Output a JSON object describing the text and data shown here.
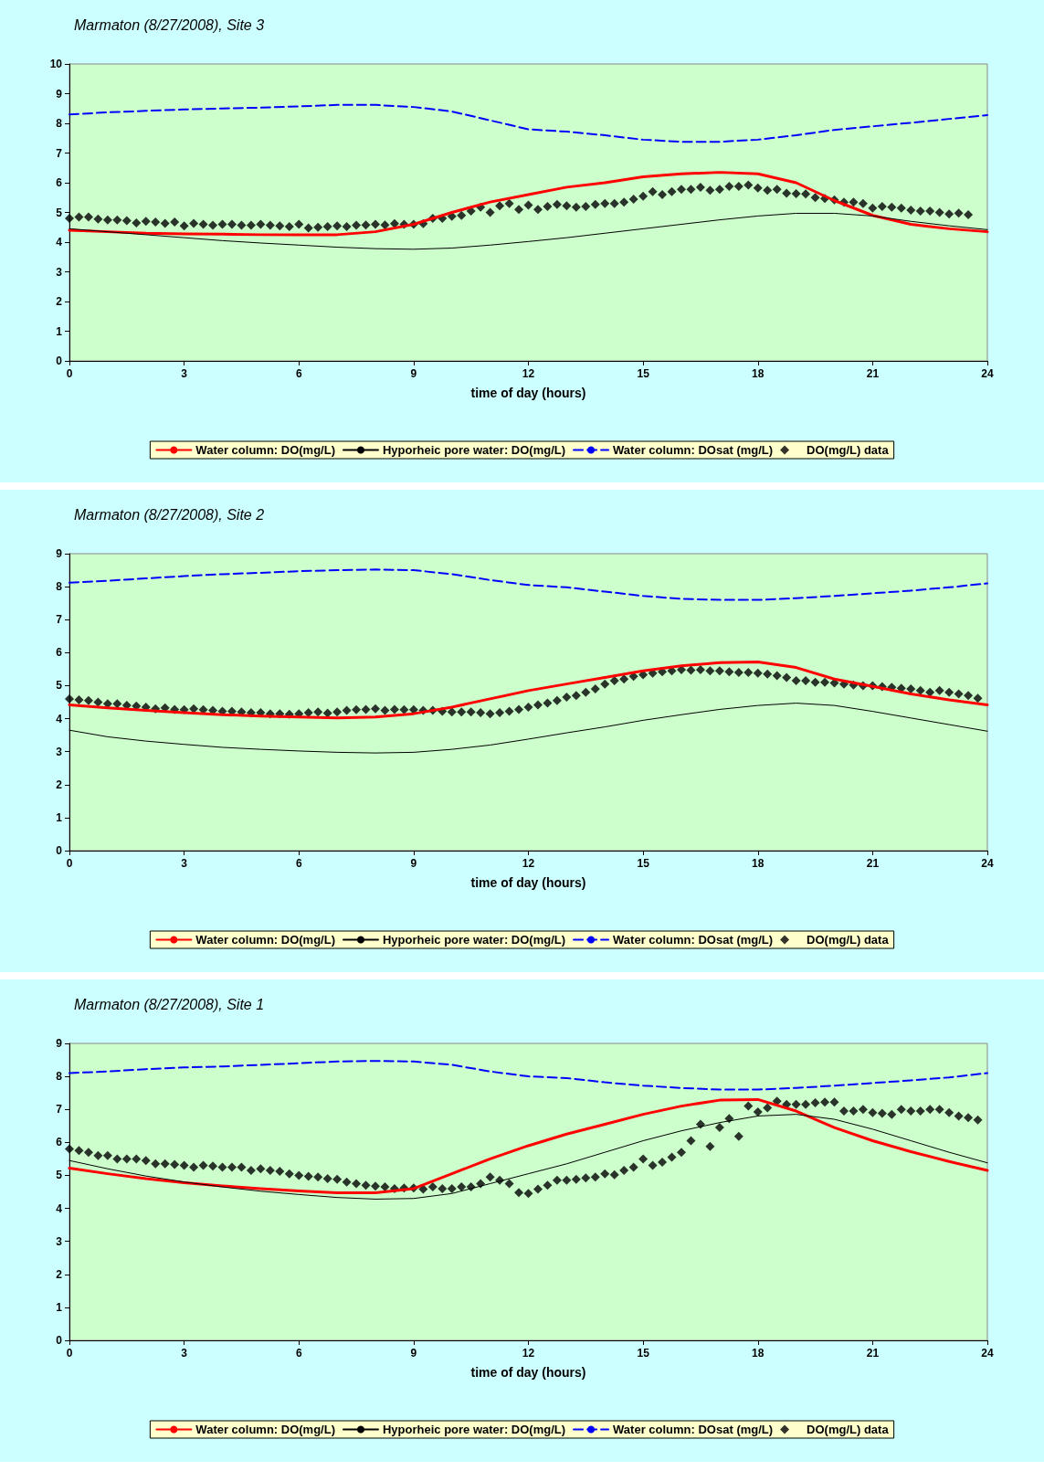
{
  "chart_data": [
    {
      "type": "line",
      "title": "Marmaton (8/27/2008), Site 3",
      "xlabel": "time of day (hours)",
      "xlim": [
        0,
        24
      ],
      "xticks": [
        0,
        3,
        6,
        9,
        12,
        15,
        18,
        21,
        24
      ],
      "ylim": [
        0,
        10
      ],
      "yticks": [
        0,
        1,
        2,
        3,
        4,
        5,
        6,
        7,
        8,
        9,
        10
      ],
      "grid": false,
      "legend": "bottom",
      "series": [
        {
          "name": "Water column: DO(mg/L)",
          "color": "#ff0000",
          "line_style": "solid",
          "marker": "none",
          "x": [
            0,
            1,
            2,
            3,
            4,
            5,
            6,
            7,
            8,
            9,
            10,
            11,
            12,
            13,
            14,
            15,
            16,
            17,
            18,
            19,
            20,
            21,
            22,
            23,
            24
          ],
          "values": [
            4.4,
            4.35,
            4.3,
            4.28,
            4.27,
            4.25,
            4.25,
            4.25,
            4.35,
            4.6,
            5.0,
            5.35,
            5.6,
            5.85,
            6.0,
            6.2,
            6.3,
            6.35,
            6.3,
            6.0,
            5.4,
            4.9,
            4.6,
            4.45,
            4.35
          ]
        },
        {
          "name": "Hyporheic pore water: DO(mg/L)",
          "color": "#000000",
          "line_style": "solid",
          "marker": "none",
          "x": [
            0,
            1,
            2,
            3,
            4,
            5,
            6,
            7,
            8,
            9,
            10,
            11,
            12,
            13,
            14,
            15,
            16,
            17,
            18,
            19,
            20,
            21,
            22,
            23,
            24
          ],
          "values": [
            4.45,
            4.35,
            4.25,
            4.15,
            4.05,
            3.97,
            3.9,
            3.83,
            3.78,
            3.76,
            3.8,
            3.9,
            4.02,
            4.15,
            4.3,
            4.45,
            4.6,
            4.75,
            4.88,
            4.97,
            4.97,
            4.88,
            4.7,
            4.55,
            4.42
          ]
        },
        {
          "name": "Water column: DOsat (mg/L)",
          "color": "#0000ff",
          "line_style": "dashed",
          "marker": "none",
          "x": [
            0,
            1,
            2,
            3,
            4,
            5,
            6,
            7,
            8,
            9,
            10,
            11,
            12,
            13,
            14,
            15,
            16,
            17,
            18,
            19,
            20,
            21,
            22,
            23,
            24
          ],
          "values": [
            8.3,
            8.37,
            8.42,
            8.47,
            8.5,
            8.53,
            8.57,
            8.62,
            8.62,
            8.55,
            8.4,
            8.1,
            7.8,
            7.72,
            7.6,
            7.45,
            7.38,
            7.38,
            7.45,
            7.6,
            7.78,
            7.9,
            8.02,
            8.15,
            8.28
          ]
        },
        {
          "name": "DO(mg/L) data",
          "type": "scatter",
          "color": "#000000",
          "marker": "diamond",
          "x": [
            0,
            0.25,
            0.5,
            0.75,
            1,
            1.25,
            1.5,
            1.75,
            2,
            2.25,
            2.5,
            2.75,
            3,
            3.25,
            3.5,
            3.75,
            4,
            4.25,
            4.5,
            4.75,
            5,
            5.25,
            5.5,
            5.75,
            6,
            6.25,
            6.5,
            6.75,
            7,
            7.25,
            7.5,
            7.75,
            8,
            8.25,
            8.5,
            8.75,
            9,
            9.25,
            9.5,
            9.75,
            10,
            10.25,
            10.5,
            10.75,
            11,
            11.25,
            11.5,
            11.75,
            12,
            12.25,
            12.5,
            12.75,
            13,
            13.25,
            13.5,
            13.75,
            14,
            14.25,
            14.5,
            14.75,
            15,
            15.25,
            15.5,
            15.75,
            16,
            16.25,
            16.5,
            16.75,
            17,
            17.25,
            17.5,
            17.75,
            18,
            18.25,
            18.5,
            18.75,
            19,
            19.25,
            19.5,
            19.75,
            20,
            20.25,
            20.5,
            20.75,
            21,
            21.25,
            21.5,
            21.75,
            22,
            22.25,
            22.5,
            22.75,
            23,
            23.25,
            23.5
          ],
          "values": [
            4.8,
            4.85,
            4.85,
            4.78,
            4.75,
            4.75,
            4.72,
            4.65,
            4.7,
            4.68,
            4.63,
            4.68,
            4.55,
            4.63,
            4.6,
            4.57,
            4.6,
            4.6,
            4.57,
            4.57,
            4.6,
            4.57,
            4.55,
            4.52,
            4.6,
            4.48,
            4.5,
            4.52,
            4.55,
            4.52,
            4.57,
            4.58,
            4.6,
            4.58,
            4.62,
            4.6,
            4.6,
            4.62,
            4.8,
            4.8,
            4.87,
            4.9,
            5.05,
            5.18,
            5.0,
            5.22,
            5.3,
            5.1,
            5.25,
            5.1,
            5.2,
            5.27,
            5.22,
            5.18,
            5.2,
            5.27,
            5.3,
            5.3,
            5.35,
            5.45,
            5.55,
            5.7,
            5.6,
            5.7,
            5.78,
            5.78,
            5.85,
            5.75,
            5.78,
            5.88,
            5.88,
            5.92,
            5.82,
            5.75,
            5.78,
            5.65,
            5.63,
            5.62,
            5.5,
            5.47,
            5.42,
            5.35,
            5.35,
            5.3,
            5.15,
            5.2,
            5.18,
            5.15,
            5.08,
            5.05,
            5.05,
            5.0,
            4.95,
            4.98,
            4.92
          ]
        }
      ]
    },
    {
      "type": "line",
      "title": "Marmaton (8/27/2008), Site 2",
      "xlabel": "time of day (hours)",
      "xlim": [
        0,
        24
      ],
      "xticks": [
        0,
        3,
        6,
        9,
        12,
        15,
        18,
        21,
        24
      ],
      "ylim": [
        0,
        9
      ],
      "yticks": [
        0,
        1,
        2,
        3,
        4,
        5,
        6,
        7,
        8,
        9
      ],
      "grid": false,
      "legend": "bottom",
      "series": [
        {
          "name": "Water column: DO(mg/L)",
          "color": "#ff0000",
          "line_style": "solid",
          "marker": "none",
          "x": [
            0,
            1,
            2,
            3,
            4,
            5,
            6,
            7,
            8,
            9,
            10,
            11,
            12,
            13,
            14,
            15,
            16,
            17,
            18,
            19,
            20,
            21,
            22,
            23,
            24
          ],
          "values": [
            4.42,
            4.33,
            4.25,
            4.18,
            4.12,
            4.08,
            4.05,
            4.02,
            4.05,
            4.15,
            4.35,
            4.6,
            4.85,
            5.05,
            5.25,
            5.45,
            5.6,
            5.7,
            5.72,
            5.55,
            5.2,
            4.98,
            4.75,
            4.57,
            4.42
          ]
        },
        {
          "name": "Hyporheic pore water: DO(mg/L)",
          "color": "#000000",
          "line_style": "solid",
          "marker": "none",
          "x": [
            0,
            1,
            2,
            3,
            4,
            5,
            6,
            7,
            8,
            9,
            10,
            11,
            12,
            13,
            14,
            15,
            16,
            17,
            18,
            19,
            20,
            21,
            22,
            23,
            24
          ],
          "values": [
            3.65,
            3.45,
            3.32,
            3.22,
            3.13,
            3.07,
            3.02,
            2.98,
            2.96,
            2.98,
            3.07,
            3.2,
            3.38,
            3.57,
            3.75,
            3.95,
            4.12,
            4.28,
            4.4,
            4.47,
            4.4,
            4.22,
            4.02,
            3.82,
            3.62
          ]
        },
        {
          "name": "Water column: DOsat (mg/L)",
          "color": "#0000ff",
          "line_style": "dashed",
          "marker": "none",
          "x": [
            0,
            1,
            2,
            3,
            4,
            5,
            6,
            7,
            8,
            9,
            10,
            11,
            12,
            13,
            14,
            15,
            16,
            17,
            18,
            19,
            20,
            21,
            22,
            23,
            24
          ],
          "values": [
            8.12,
            8.18,
            8.25,
            8.32,
            8.38,
            8.42,
            8.47,
            8.5,
            8.52,
            8.5,
            8.38,
            8.2,
            8.05,
            7.98,
            7.85,
            7.72,
            7.63,
            7.6,
            7.6,
            7.65,
            7.72,
            7.8,
            7.88,
            7.98,
            8.1
          ]
        },
        {
          "name": "DO(mg/L) data",
          "type": "scatter",
          "color": "#000000",
          "marker": "diamond",
          "x": [
            0,
            0.25,
            0.5,
            0.75,
            1,
            1.25,
            1.5,
            1.75,
            2,
            2.25,
            2.5,
            2.75,
            3,
            3.25,
            3.5,
            3.75,
            4,
            4.25,
            4.5,
            4.75,
            5,
            5.25,
            5.5,
            5.75,
            6,
            6.25,
            6.5,
            6.75,
            7,
            7.25,
            7.5,
            7.75,
            8,
            8.25,
            8.5,
            8.75,
            9,
            9.25,
            9.5,
            9.75,
            10,
            10.25,
            10.5,
            10.75,
            11,
            11.25,
            11.5,
            11.75,
            12,
            12.25,
            12.5,
            12.75,
            13,
            13.25,
            13.5,
            13.75,
            14,
            14.25,
            14.5,
            14.75,
            15,
            15.25,
            15.5,
            15.75,
            16,
            16.25,
            16.5,
            16.75,
            17,
            17.25,
            17.5,
            17.75,
            18,
            18.25,
            18.5,
            18.75,
            19,
            19.25,
            19.5,
            19.75,
            20,
            20.25,
            20.5,
            20.75,
            21,
            21.25,
            21.5,
            21.75,
            22,
            22.25,
            22.5,
            22.75,
            23,
            23.25,
            23.5,
            23.75
          ],
          "values": [
            4.6,
            4.57,
            4.55,
            4.5,
            4.45,
            4.45,
            4.4,
            4.38,
            4.35,
            4.3,
            4.33,
            4.28,
            4.27,
            4.3,
            4.27,
            4.25,
            4.22,
            4.22,
            4.2,
            4.18,
            4.18,
            4.15,
            4.15,
            4.13,
            4.15,
            4.18,
            4.2,
            4.17,
            4.2,
            4.25,
            4.27,
            4.28,
            4.3,
            4.25,
            4.28,
            4.27,
            4.27,
            4.25,
            4.25,
            4.22,
            4.2,
            4.2,
            4.2,
            4.18,
            4.15,
            4.18,
            4.22,
            4.28,
            4.35,
            4.42,
            4.47,
            4.55,
            4.65,
            4.7,
            4.8,
            4.9,
            5.05,
            5.15,
            5.2,
            5.28,
            5.33,
            5.38,
            5.42,
            5.45,
            5.48,
            5.47,
            5.48,
            5.45,
            5.45,
            5.42,
            5.4,
            5.4,
            5.38,
            5.35,
            5.3,
            5.25,
            5.15,
            5.15,
            5.1,
            5.1,
            5.08,
            5.05,
            5.02,
            5.0,
            5.0,
            4.97,
            4.95,
            4.92,
            4.9,
            4.85,
            4.8,
            4.85,
            4.8,
            4.75,
            4.7,
            4.62
          ]
        }
      ]
    },
    {
      "type": "line",
      "title": "Marmaton (8/27/2008), Site 1",
      "xlabel": "time of day (hours)",
      "xlim": [
        0,
        24
      ],
      "xticks": [
        0,
        3,
        6,
        9,
        12,
        15,
        18,
        21,
        24
      ],
      "ylim": [
        0,
        9
      ],
      "yticks": [
        0,
        1,
        2,
        3,
        4,
        5,
        6,
        7,
        8,
        9
      ],
      "grid": false,
      "legend": "bottom",
      "series": [
        {
          "name": "Water column: DO(mg/L)",
          "color": "#ff0000",
          "line_style": "solid",
          "marker": "none",
          "x": [
            0,
            1,
            2,
            3,
            4,
            5,
            6,
            7,
            8,
            9,
            10,
            11,
            12,
            13,
            14,
            15,
            16,
            17,
            18,
            19,
            20,
            21,
            22,
            23,
            24
          ],
          "values": [
            5.22,
            5.05,
            4.9,
            4.78,
            4.68,
            4.6,
            4.53,
            4.47,
            4.47,
            4.6,
            5.05,
            5.5,
            5.9,
            6.25,
            6.55,
            6.85,
            7.1,
            7.28,
            7.3,
            6.95,
            6.45,
            6.05,
            5.72,
            5.42,
            5.15
          ]
        },
        {
          "name": "Hyporheic pore water: DO(mg/L)",
          "color": "#000000",
          "line_style": "solid",
          "marker": "none",
          "x": [
            0,
            1,
            2,
            3,
            4,
            5,
            6,
            7,
            8,
            9,
            10,
            11,
            12,
            13,
            14,
            15,
            16,
            17,
            18,
            19,
            20,
            21,
            22,
            23,
            24
          ],
          "values": [
            5.45,
            5.2,
            4.98,
            4.8,
            4.65,
            4.52,
            4.42,
            4.33,
            4.28,
            4.3,
            4.45,
            4.75,
            5.05,
            5.35,
            5.7,
            6.05,
            6.35,
            6.6,
            6.8,
            6.85,
            6.7,
            6.4,
            6.05,
            5.7,
            5.38
          ]
        },
        {
          "name": "Water column: DOsat (mg/L)",
          "color": "#0000ff",
          "line_style": "dashed",
          "marker": "none",
          "x": [
            0,
            1,
            2,
            3,
            4,
            5,
            6,
            7,
            8,
            9,
            10,
            11,
            12,
            13,
            14,
            15,
            16,
            17,
            18,
            19,
            20,
            21,
            22,
            23,
            24
          ],
          "values": [
            8.1,
            8.15,
            8.22,
            8.27,
            8.3,
            8.35,
            8.4,
            8.45,
            8.47,
            8.45,
            8.35,
            8.15,
            8.0,
            7.95,
            7.82,
            7.72,
            7.65,
            7.6,
            7.6,
            7.65,
            7.72,
            7.8,
            7.88,
            7.97,
            8.1
          ]
        },
        {
          "name": "DO(mg/L) data",
          "type": "scatter",
          "color": "#000000",
          "marker": "diamond",
          "x": [
            0,
            0.25,
            0.5,
            0.75,
            1,
            1.25,
            1.5,
            1.75,
            2,
            2.25,
            2.5,
            2.75,
            3,
            3.25,
            3.5,
            3.75,
            4,
            4.25,
            4.5,
            4.75,
            5,
            5.25,
            5.5,
            5.75,
            6,
            6.25,
            6.5,
            6.75,
            7,
            7.25,
            7.5,
            7.75,
            8,
            8.25,
            8.5,
            8.75,
            9,
            9.25,
            9.5,
            9.75,
            10,
            10.25,
            10.5,
            10.75,
            11,
            11.25,
            11.5,
            11.75,
            12,
            12.25,
            12.5,
            12.75,
            13,
            13.25,
            13.5,
            13.75,
            14,
            14.25,
            14.5,
            14.75,
            15,
            15.25,
            15.5,
            15.75,
            16,
            16.25,
            16.5,
            16.75,
            17,
            17.25,
            17.5,
            17.75,
            18,
            18.25,
            18.5,
            18.75,
            19,
            19.25,
            19.5,
            19.75,
            20,
            20.25,
            20.5,
            20.75,
            21,
            21.25,
            21.5,
            21.75,
            22,
            22.25,
            22.5,
            22.75,
            23,
            23.25,
            23.5,
            23.75
          ],
          "values": [
            5.8,
            5.75,
            5.7,
            5.6,
            5.6,
            5.5,
            5.5,
            5.5,
            5.45,
            5.35,
            5.35,
            5.33,
            5.3,
            5.25,
            5.3,
            5.28,
            5.25,
            5.25,
            5.25,
            5.15,
            5.2,
            5.15,
            5.12,
            5.05,
            5.0,
            4.97,
            4.95,
            4.9,
            4.88,
            4.8,
            4.75,
            4.7,
            4.67,
            4.65,
            4.6,
            4.62,
            4.62,
            4.58,
            4.65,
            4.6,
            4.6,
            4.65,
            4.65,
            4.75,
            4.95,
            4.85,
            4.75,
            4.48,
            4.45,
            4.58,
            4.7,
            4.85,
            4.85,
            4.88,
            4.92,
            4.95,
            5.05,
            5.02,
            5.15,
            5.25,
            5.5,
            5.3,
            5.4,
            5.55,
            5.7,
            6.05,
            6.55,
            5.88,
            6.45,
            6.72,
            6.18,
            7.1,
            6.92,
            7.05,
            7.25,
            7.15,
            7.15,
            7.15,
            7.2,
            7.22,
            7.22,
            6.95,
            6.95,
            7.0,
            6.9,
            6.88,
            6.85,
            7.0,
            6.95,
            6.95,
            7.0,
            7.0,
            6.9,
            6.8,
            6.75,
            6.68
          ]
        }
      ]
    }
  ]
}
